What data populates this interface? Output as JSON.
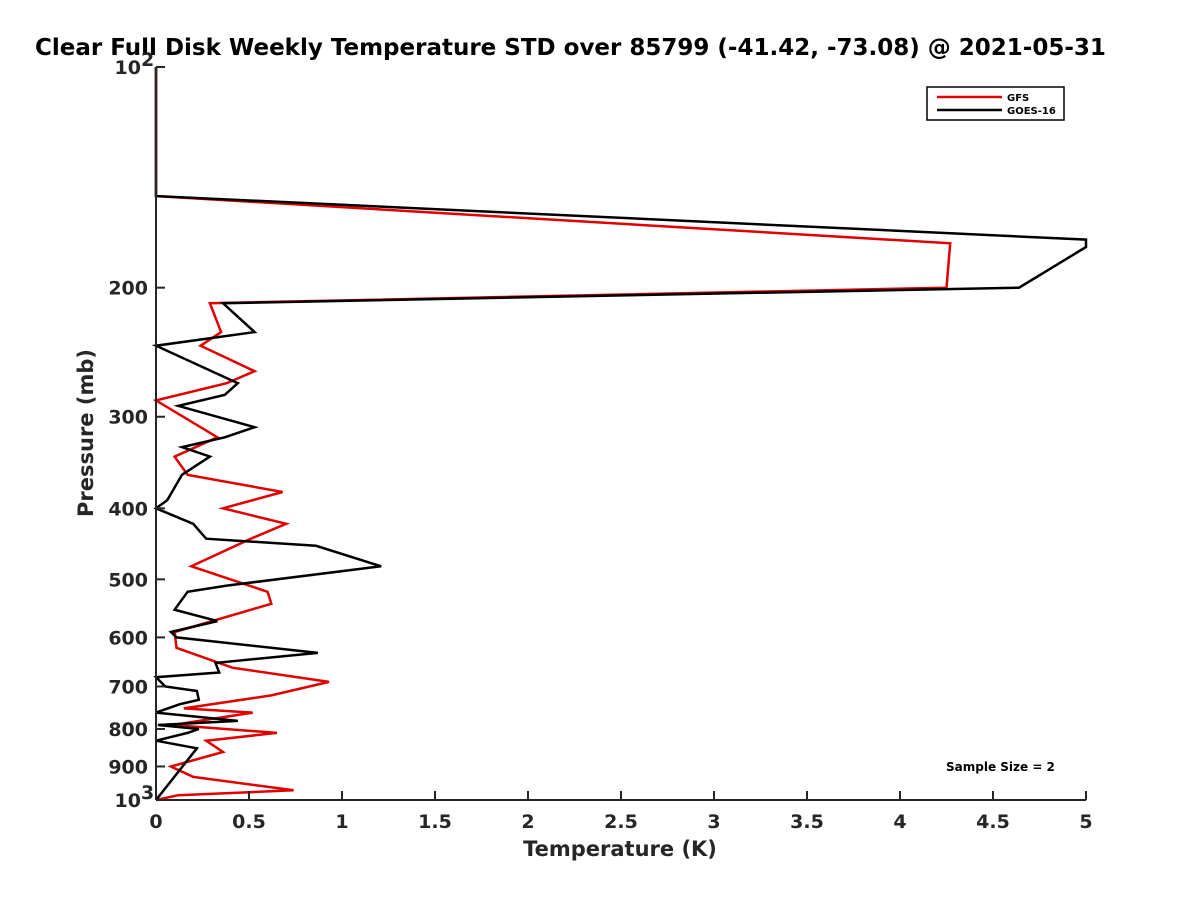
{
  "chart_data": {
    "type": "line",
    "title": "Clear Full Disk Weekly Temperature STD over 85799 (-41.42, -73.08) @ 2021-05-31",
    "xlabel": "Temperature (K)",
    "ylabel": "Pressure (mb)",
    "xlim": [
      0,
      5
    ],
    "ylim": [
      100,
      1000
    ],
    "y_scale": "log",
    "y_reversed": true,
    "x_ticks": [
      {
        "value": 0,
        "label": "0"
      },
      {
        "value": 0.5,
        "label": "0.5"
      },
      {
        "value": 1,
        "label": "1"
      },
      {
        "value": 1.5,
        "label": "1.5"
      },
      {
        "value": 2,
        "label": "2"
      },
      {
        "value": 2.5,
        "label": "2.5"
      },
      {
        "value": 3,
        "label": "3"
      },
      {
        "value": 3.5,
        "label": "3.5"
      },
      {
        "value": 4,
        "label": "4"
      },
      {
        "value": 4.5,
        "label": "4.5"
      },
      {
        "value": 5,
        "label": "5"
      }
    ],
    "y_ticks": [
      {
        "value": 100,
        "label": "10",
        "exp": "2"
      },
      {
        "value": 200,
        "label": "200",
        "exp": ""
      },
      {
        "value": 300,
        "label": "300",
        "exp": ""
      },
      {
        "value": 400,
        "label": "400",
        "exp": ""
      },
      {
        "value": 500,
        "label": "500",
        "exp": ""
      },
      {
        "value": 600,
        "label": "600",
        "exp": ""
      },
      {
        "value": 700,
        "label": "700",
        "exp": ""
      },
      {
        "value": 800,
        "label": "800",
        "exp": ""
      },
      {
        "value": 900,
        "label": "900",
        "exp": ""
      },
      {
        "value": 1000,
        "label": "10",
        "exp": "3"
      }
    ],
    "legend_position": "top-right",
    "annotation": "Sample Size = 2",
    "grid": false,
    "series": [
      {
        "name": "GFS",
        "color": "#e00000",
        "points": [
          [
            0,
            100
          ],
          [
            0,
            150
          ],
          [
            4.27,
            174
          ],
          [
            4.25,
            200
          ],
          [
            0.29,
            210
          ],
          [
            0.35,
            230
          ],
          [
            0.24,
            240
          ],
          [
            0.53,
            260
          ],
          [
            0.38,
            270
          ],
          [
            0,
            285
          ],
          [
            0.33,
            320
          ],
          [
            0.1,
            340
          ],
          [
            0.17,
            360
          ],
          [
            0.68,
            380
          ],
          [
            0.36,
            400
          ],
          [
            0.7,
            420
          ],
          [
            0.51,
            440
          ],
          [
            0.19,
            480
          ],
          [
            0.6,
            520
          ],
          [
            0.62,
            540
          ],
          [
            0.1,
            590
          ],
          [
            0.11,
            620
          ],
          [
            0.41,
            660
          ],
          [
            0.93,
            690
          ],
          [
            0.62,
            720
          ],
          [
            0.15,
            750
          ],
          [
            0.52,
            760
          ],
          [
            0.09,
            790
          ],
          [
            0.65,
            810
          ],
          [
            0.27,
            830
          ],
          [
            0.36,
            860
          ],
          [
            0.08,
            900
          ],
          [
            0.2,
            930
          ],
          [
            0.74,
            970
          ],
          [
            0.12,
            985
          ],
          [
            0,
            1000
          ]
        ]
      },
      {
        "name": "GOES-16",
        "color": "#000000",
        "points": [
          [
            0,
            100
          ],
          [
            0,
            150
          ],
          [
            5.0,
            172
          ],
          [
            5.0,
            176
          ],
          [
            4.64,
            200
          ],
          [
            0.36,
            210
          ],
          [
            0.53,
            230
          ],
          [
            0,
            240
          ],
          [
            0.44,
            270
          ],
          [
            0.37,
            280
          ],
          [
            0.12,
            290
          ],
          [
            0.53,
            310
          ],
          [
            0.37,
            320
          ],
          [
            0.14,
            330
          ],
          [
            0.29,
            340
          ],
          [
            0.14,
            360
          ],
          [
            0.06,
            390
          ],
          [
            0,
            400
          ],
          [
            0.2,
            420
          ],
          [
            0.27,
            440
          ],
          [
            0.86,
            450
          ],
          [
            1.21,
            480
          ],
          [
            0.38,
            510
          ],
          [
            0.17,
            520
          ],
          [
            0.1,
            550
          ],
          [
            0.33,
            570
          ],
          [
            0.08,
            590
          ],
          [
            0.11,
            600
          ],
          [
            0.87,
            630
          ],
          [
            0.32,
            650
          ],
          [
            0.34,
            670
          ],
          [
            0,
            680
          ],
          [
            0.05,
            700
          ],
          [
            0.22,
            710
          ],
          [
            0.23,
            730
          ],
          [
            0.13,
            740
          ],
          [
            0,
            760
          ],
          [
            0.44,
            780
          ],
          [
            0.01,
            790
          ],
          [
            0.23,
            800
          ],
          [
            0.17,
            810
          ],
          [
            0,
            830
          ],
          [
            0.22,
            850
          ],
          [
            0,
            1000
          ]
        ]
      }
    ]
  }
}
